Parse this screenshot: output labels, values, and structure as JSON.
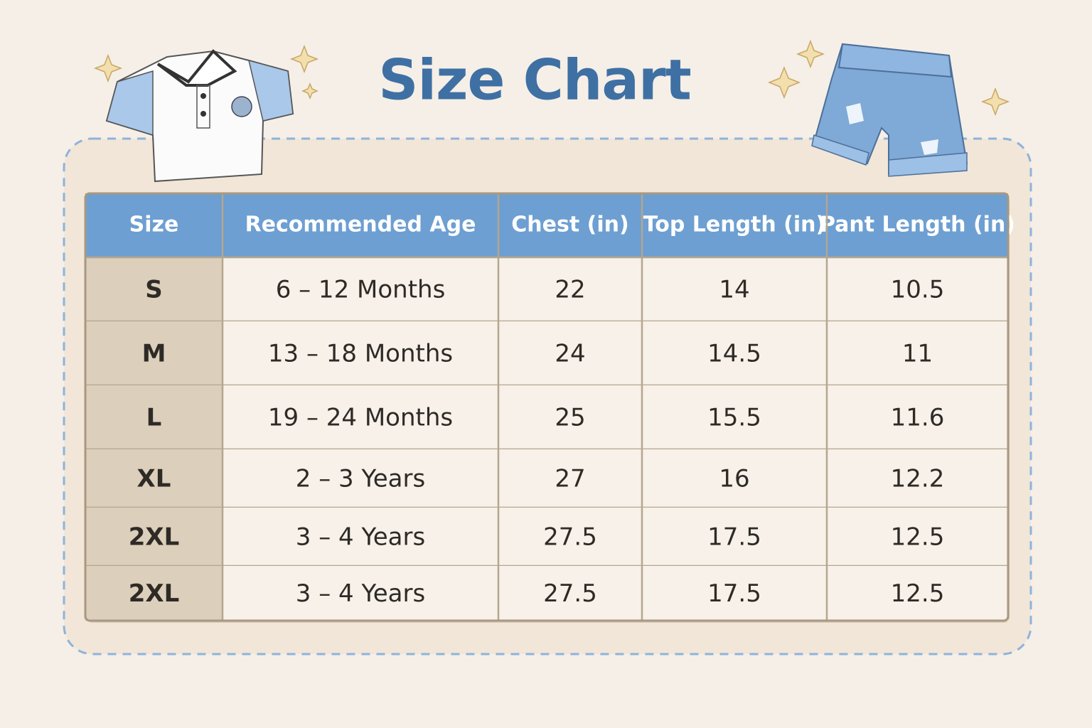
{
  "header": {
    "title": "Size Chart"
  },
  "table": {
    "columns": [
      "Size",
      "Recommended Age",
      "Chest (in)",
      "Top Length (in)",
      "Pant Length (in)"
    ],
    "rows": [
      [
        "S",
        "6 – 12 Months",
        "22",
        "14",
        "10.5"
      ],
      [
        "M",
        "13 – 18 Months",
        "24",
        "14.5",
        "11"
      ],
      [
        "L",
        "19 – 24 Months",
        "25",
        "15.5",
        "11.6"
      ],
      [
        "XL",
        "2 – 3 Years",
        "27",
        "16",
        "12.2"
      ],
      [
        "2XL",
        "3 – 4 Years",
        "27.5",
        "17.5",
        "12.5"
      ],
      [
        "2XL",
        "3 – 4 Years",
        "27.5",
        "17.5",
        "12.5"
      ]
    ]
  }
}
